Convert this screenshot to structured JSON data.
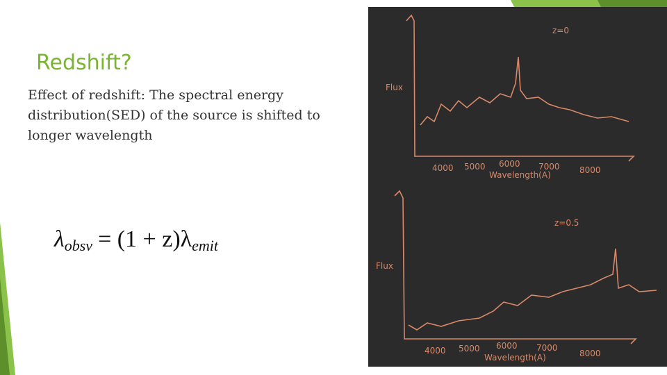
{
  "header": {
    "title": "Redshift?"
  },
  "body": {
    "lines": [
      "Effect of redshift: The spectral energy",
      "distribution(SED) of the source is shifted to",
      "longer wavelength"
    ]
  },
  "formula": {
    "lhs": "λ",
    "lhs_sub": "obsv",
    "rhs": "= (1 + z)λ",
    "rhs_sub": "emit"
  },
  "figure": {
    "top": {
      "label": "z=0",
      "y_label": "Flux",
      "ticks": [
        "4000",
        "5000",
        "6000",
        "7000",
        "8000"
      ],
      "x_label": "Wavelength(A)"
    },
    "bottom": {
      "label": "z=0.5",
      "y_label": "Flux",
      "ticks": [
        "4000",
        "5000",
        "6000",
        "7000",
        "8000"
      ],
      "x_label": "Wavelength(A)"
    }
  }
}
